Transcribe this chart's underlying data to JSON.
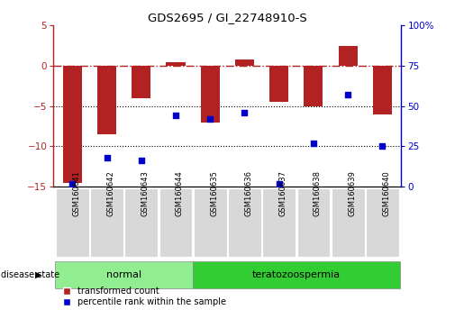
{
  "title": "GDS2695 / GI_22748910-S",
  "samples": [
    "GSM160641",
    "GSM160642",
    "GSM160643",
    "GSM160644",
    "GSM160635",
    "GSM160636",
    "GSM160637",
    "GSM160638",
    "GSM160639",
    "GSM160640"
  ],
  "transformed_count": [
    -14.5,
    -8.5,
    -4.0,
    0.5,
    -7.0,
    0.8,
    -4.5,
    -5.0,
    2.5,
    -6.0
  ],
  "percentile_rank": [
    2,
    18,
    16,
    44,
    42,
    46,
    2,
    27,
    57,
    25
  ],
  "bar_color": "#b22222",
  "dot_color": "#0000cc",
  "ylim_left": [
    -15,
    5
  ],
  "ylim_right": [
    0,
    100
  ],
  "yticks_left": [
    5,
    0,
    -5,
    -10,
    -15
  ],
  "yticks_right": [
    100,
    75,
    50,
    25,
    0
  ],
  "dotted_lines": [
    -5,
    -10
  ],
  "normal_label": "normal",
  "disease_label": "teratozoospermia",
  "disease_state_label": "disease state",
  "legend_bar_label": "transformed count",
  "legend_dot_label": "percentile rank within the sample",
  "normal_color": "#90ee90",
  "disease_color": "#32cd32",
  "bg_color": "#ffffff",
  "bar_width": 0.55,
  "fig_width": 5.15,
  "fig_height": 3.54
}
